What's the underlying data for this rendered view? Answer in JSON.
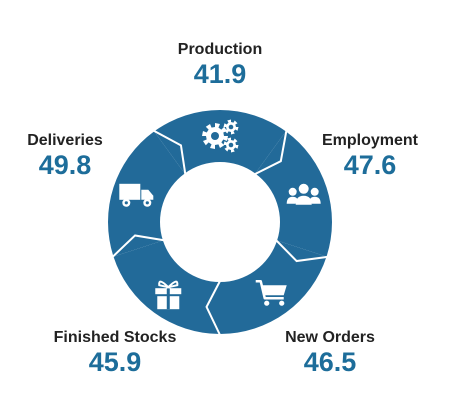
{
  "colors": {
    "ring": "#226a99",
    "divider": "#ffffff",
    "icon": "#ffffff",
    "value": "#1d6d9a",
    "label": "#222222"
  },
  "chart_data": {
    "type": "pie",
    "style": "donut",
    "title": "",
    "slices": [
      {
        "name": "Production",
        "value": 41.9,
        "icon": "gears-icon"
      },
      {
        "name": "Employment",
        "value": 47.6,
        "icon": "people-group-icon"
      },
      {
        "name": "New Orders",
        "value": 46.5,
        "icon": "shopping-cart-icon"
      },
      {
        "name": "Finished Stocks",
        "value": 45.9,
        "icon": "gift-box-icon"
      },
      {
        "name": "Deliveries",
        "value": 49.8,
        "icon": "delivery-truck-icon"
      }
    ]
  }
}
